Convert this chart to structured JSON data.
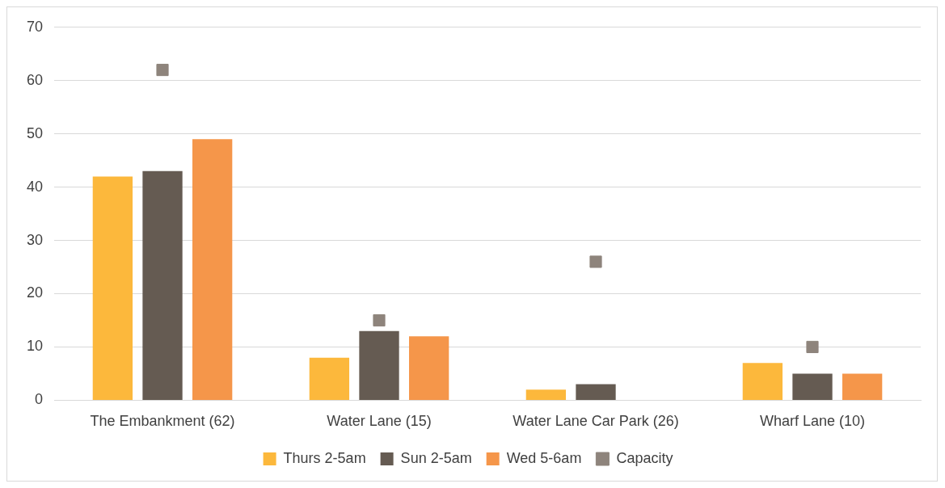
{
  "chart_data": {
    "type": "bar",
    "categories": [
      "The Embankment (62)",
      "Water Lane (15)",
      "Water Lane Car Park (26)",
      "Wharf Lane (10)"
    ],
    "series": [
      {
        "name": "Thurs 2-5am",
        "color": "#fcb83c",
        "values": [
          42,
          8,
          2,
          7
        ]
      },
      {
        "name": "Sun 2-5am",
        "color": "#655b52",
        "values": [
          43,
          13,
          3,
          5
        ]
      },
      {
        "name": "Wed 5-6am",
        "color": "#f5964a",
        "values": [
          49,
          12,
          0,
          5
        ]
      },
      {
        "name": "Capacity",
        "type": "scatter",
        "color": "#8e847c",
        "marker": "square",
        "values": [
          62,
          15,
          26,
          10
        ]
      }
    ],
    "ylim": [
      0,
      70
    ],
    "yticks": [
      0,
      10,
      20,
      30,
      40,
      50,
      60,
      70
    ],
    "grid": "y",
    "legend": "bottom"
  }
}
